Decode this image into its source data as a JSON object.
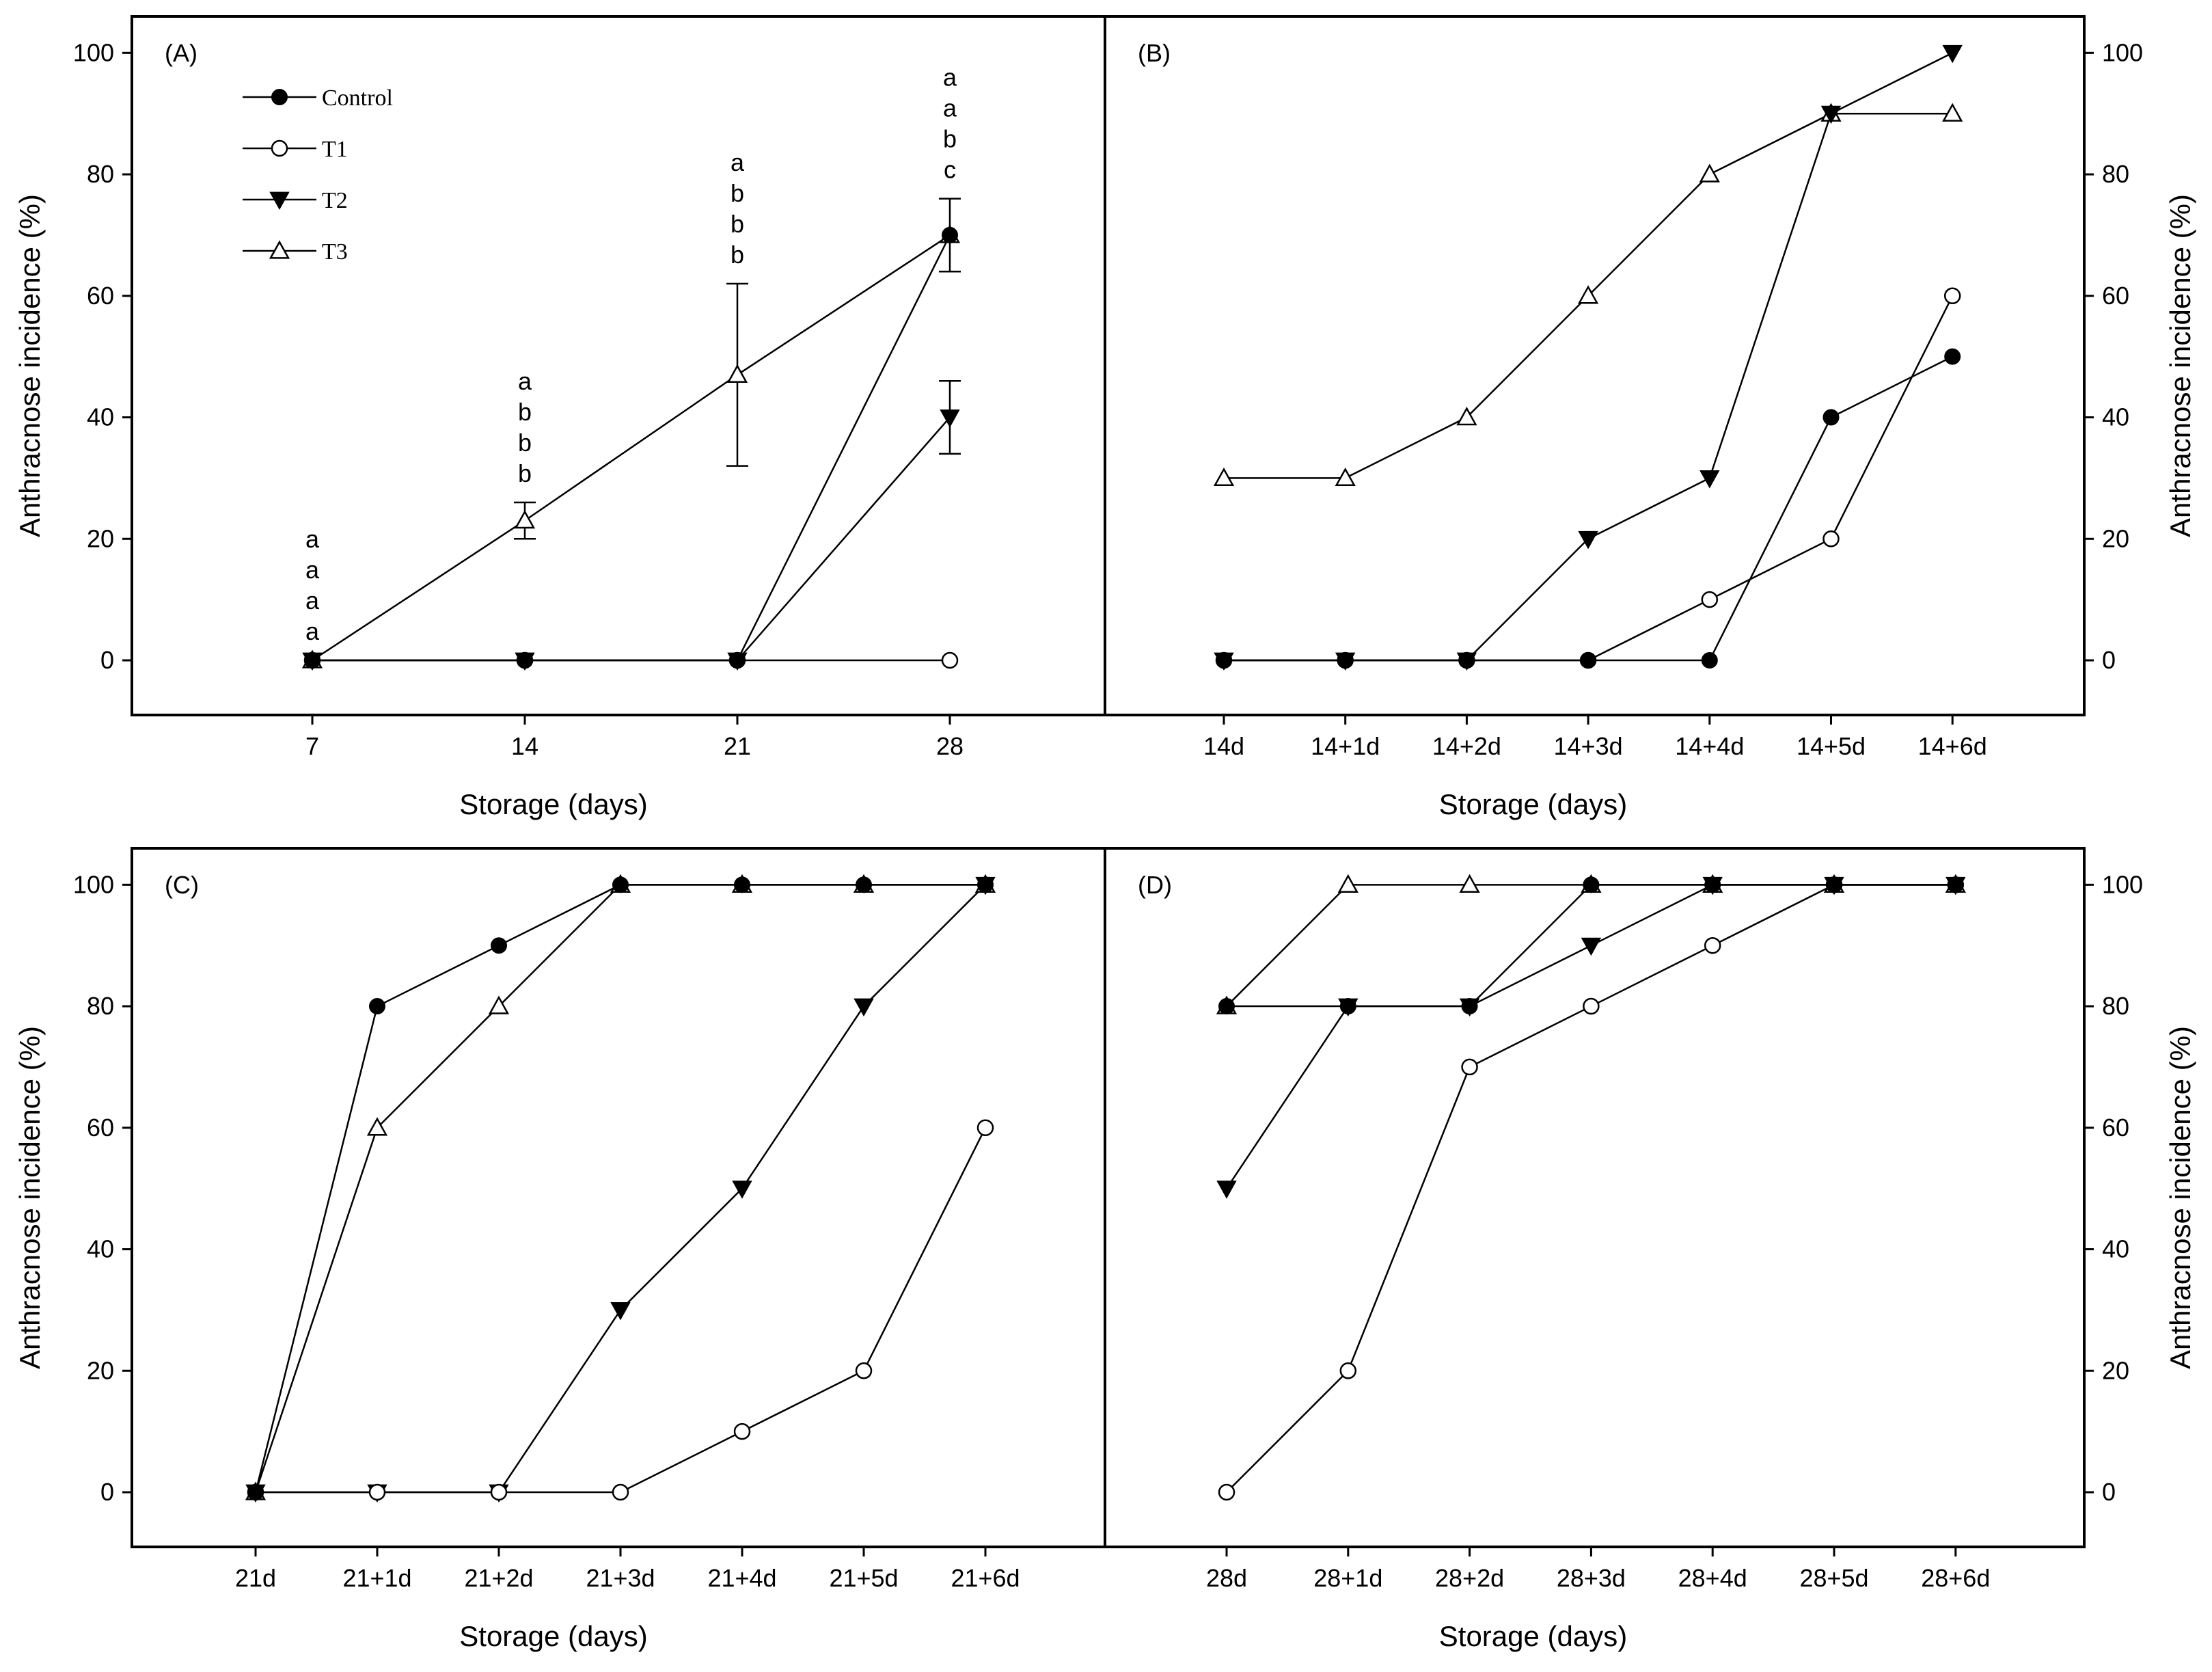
{
  "figure": {
    "background": "#ffffff",
    "ink": "#000000"
  },
  "legend": {
    "entries": [
      {
        "series": "Control",
        "label": "Control",
        "marker": "filled-circle"
      },
      {
        "series": "T1",
        "label": "T1",
        "marker": "open-circle"
      },
      {
        "series": "T2",
        "label": "T2",
        "marker": "filled-down-triangle"
      },
      {
        "series": "T3",
        "label": "T3",
        "marker": "open-up-triangle"
      }
    ]
  },
  "chart_data": [
    {
      "panel": "(A)",
      "type": "line",
      "categories": [
        "7",
        "14",
        "21",
        "28"
      ],
      "xlabel": "Storage (days)",
      "ylabel": "Anthracnose incidence (%)",
      "ylim": [
        -9,
        106
      ],
      "yticks": [
        "0",
        "20",
        "40",
        "60",
        "80",
        "100"
      ],
      "yaxis_side": "left",
      "series": [
        {
          "name": "Control",
          "marker": "filled-circle",
          "values": [
            0,
            0,
            0,
            70
          ]
        },
        {
          "name": "T1",
          "marker": "open-circle",
          "values": [
            0,
            0,
            0,
            0
          ]
        },
        {
          "name": "T2",
          "marker": "filled-down-triangle",
          "values": [
            0,
            0,
            0,
            40
          ],
          "errors": [
            0,
            0,
            0,
            6
          ]
        },
        {
          "name": "T3",
          "marker": "open-up-triangle",
          "values": [
            0,
            23,
            47,
            70
          ],
          "errors": [
            0,
            3,
            15,
            6
          ]
        }
      ],
      "significance_letters": [
        {
          "category": "7",
          "letters": [
            "a",
            "a",
            "a",
            "a"
          ]
        },
        {
          "category": "14",
          "letters": [
            "a",
            "b",
            "b",
            "b"
          ]
        },
        {
          "category": "21",
          "letters": [
            "a",
            "b",
            "b",
            "b"
          ]
        },
        {
          "category": "28",
          "letters": [
            "a",
            "a",
            "b",
            "c"
          ]
        }
      ]
    },
    {
      "panel": "(B)",
      "type": "line",
      "categories": [
        "14d",
        "14+1d",
        "14+2d",
        "14+3d",
        "14+4d",
        "14+5d",
        "14+6d"
      ],
      "xlabel": "Storage (days)",
      "ylabel": "Anthracnose incidence (%)",
      "ylim": [
        -9,
        106
      ],
      "yticks": [
        "0",
        "20",
        "40",
        "60",
        "80",
        "100"
      ],
      "yaxis_side": "right",
      "series": [
        {
          "name": "Control",
          "marker": "filled-circle",
          "values": [
            0,
            0,
            0,
            0,
            0,
            40,
            50
          ]
        },
        {
          "name": "T1",
          "marker": "open-circle",
          "values": [
            0,
            0,
            0,
            0,
            10,
            20,
            60
          ]
        },
        {
          "name": "T2",
          "marker": "filled-down-triangle",
          "values": [
            0,
            0,
            0,
            20,
            30,
            90,
            100
          ]
        },
        {
          "name": "T3",
          "marker": "open-up-triangle",
          "values": [
            30,
            30,
            40,
            60,
            80,
            90,
            90
          ]
        }
      ]
    },
    {
      "panel": "(C)",
      "type": "line",
      "categories": [
        "21d",
        "21+1d",
        "21+2d",
        "21+3d",
        "21+4d",
        "21+5d",
        "21+6d"
      ],
      "xlabel": "Storage (days)",
      "ylabel": "Anthracnose incidence (%)",
      "ylim": [
        -9,
        106
      ],
      "yticks": [
        "0",
        "20",
        "40",
        "60",
        "80",
        "100"
      ],
      "yaxis_side": "left",
      "series": [
        {
          "name": "Control",
          "marker": "filled-circle",
          "values": [
            0,
            80,
            90,
            100,
            100,
            100,
            100
          ]
        },
        {
          "name": "T1",
          "marker": "open-circle",
          "values": [
            0,
            0,
            0,
            0,
            10,
            20,
            60
          ]
        },
        {
          "name": "T2",
          "marker": "filled-down-triangle",
          "values": [
            0,
            0,
            0,
            30,
            50,
            80,
            100
          ]
        },
        {
          "name": "T3",
          "marker": "open-up-triangle",
          "values": [
            0,
            60,
            80,
            100,
            100,
            100,
            100
          ]
        }
      ]
    },
    {
      "panel": "(D)",
      "type": "line",
      "categories": [
        "28d",
        "28+1d",
        "28+2d",
        "28+3d",
        "28+4d",
        "28+5d",
        "28+6d"
      ],
      "xlabel": "Storage (days)",
      "ylabel": "Anthracnose incidence (%)",
      "ylim": [
        -9,
        106
      ],
      "yticks": [
        "0",
        "20",
        "40",
        "60",
        "80",
        "100"
      ],
      "yaxis_side": "right",
      "series": [
        {
          "name": "Control",
          "marker": "filled-circle",
          "values": [
            80,
            80,
            80,
            100,
            100,
            100,
            100
          ]
        },
        {
          "name": "T1",
          "marker": "open-circle",
          "values": [
            0,
            20,
            70,
            80,
            90,
            100,
            100
          ]
        },
        {
          "name": "T2",
          "marker": "filled-down-triangle",
          "values": [
            50,
            80,
            80,
            90,
            100,
            100,
            100
          ]
        },
        {
          "name": "T3",
          "marker": "open-up-triangle",
          "values": [
            80,
            100,
            100,
            100,
            100,
            100,
            100
          ]
        }
      ]
    }
  ]
}
